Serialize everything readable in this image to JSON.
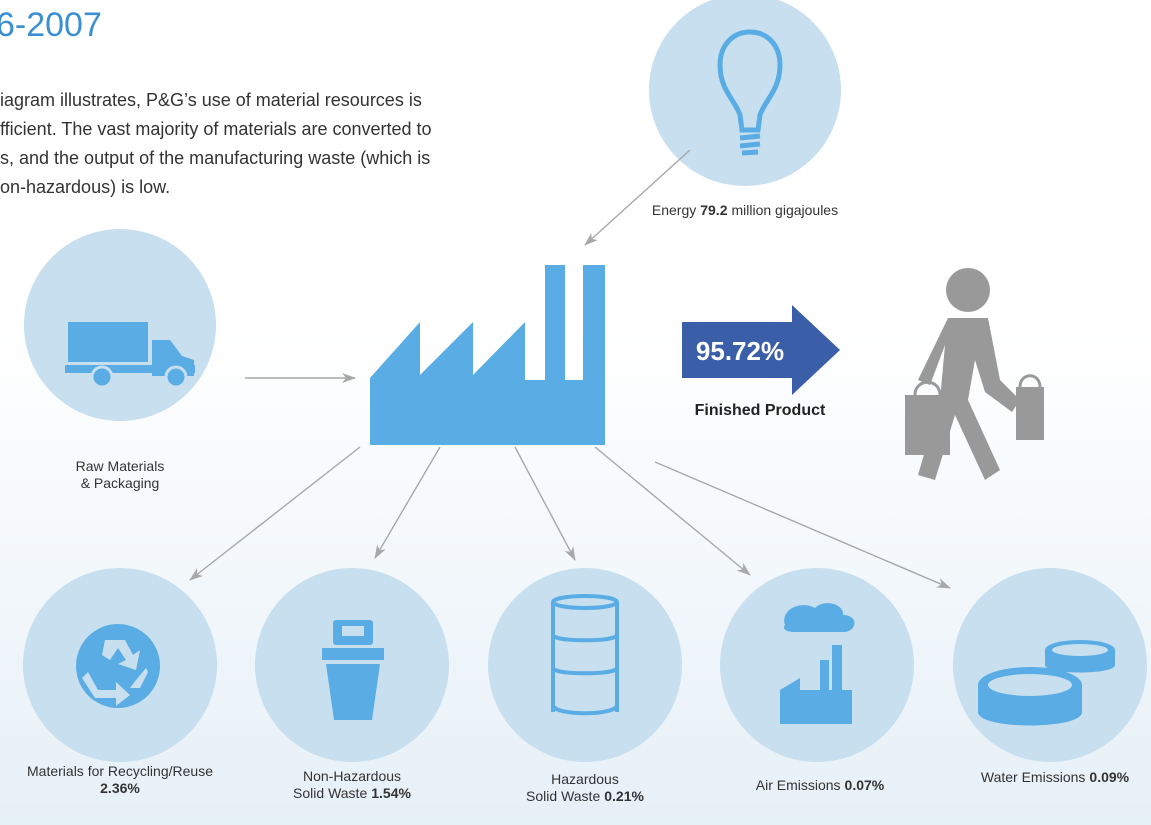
{
  "header": {
    "title": "6-2007"
  },
  "intro": {
    "lines": [
      "iagram illustrates, P&G’s use of material resources is",
      "fficient. The vast majority of materials are converted to",
      "s, and the output of the manufacturing waste (which is",
      "on-hazardous) is low."
    ]
  },
  "energy": {
    "label": "Energy",
    "value": "79.2",
    "unit": "million gigajoules"
  },
  "finished_product": {
    "value": "95.72%",
    "label": "Finished Product"
  },
  "raw_materials": {
    "lines": [
      "Raw Materials",
      "& Packaging"
    ]
  },
  "outputs": [
    {
      "lines": [
        "Materials for Recycling/Reuse"
      ],
      "value": "2.36%"
    },
    {
      "lines": [
        "Non-Hazardous",
        "Solid Waste"
      ],
      "value": "1.54%"
    },
    {
      "lines": [
        "Hazardous",
        "Solid Waste"
      ],
      "value": "0.21%"
    },
    {
      "lines": [
        "Air Emissions"
      ],
      "value": "0.07%"
    },
    {
      "lines": [
        "Water Emissions"
      ],
      "value": "0.09%"
    }
  ]
}
